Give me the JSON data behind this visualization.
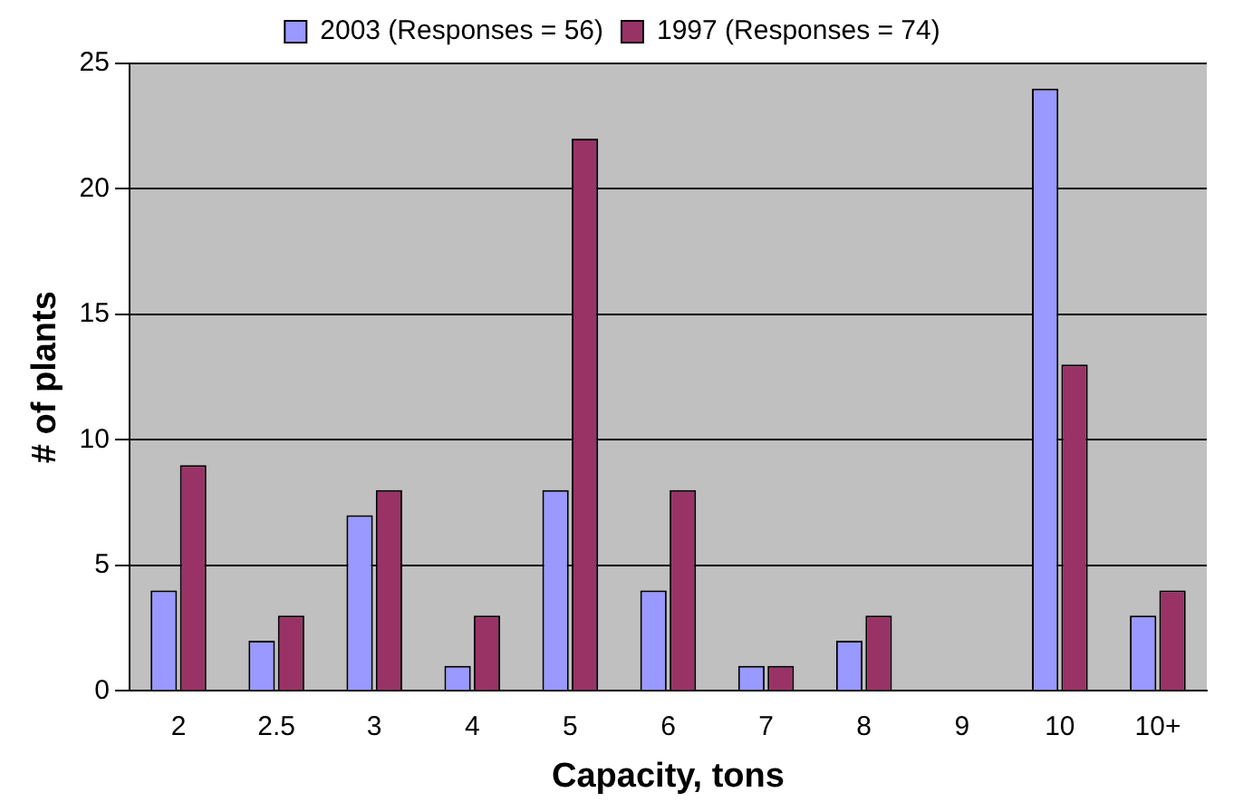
{
  "chart_data": {
    "type": "bar",
    "xlabel": "Capacity, tons",
    "ylabel": "# of plants",
    "categories": [
      "2",
      "2.5",
      "3",
      "4",
      "5",
      "6",
      "7",
      "8",
      "9",
      "10",
      "10+"
    ],
    "series": [
      {
        "name": "2003 (Responses = 56)",
        "color": "#9999ff",
        "values": [
          4,
          2,
          7,
          1,
          8,
          4,
          1,
          2,
          0,
          24,
          3
        ]
      },
      {
        "name": "1997 (Responses = 74)",
        "color": "#993366",
        "values": [
          9,
          3,
          8,
          3,
          22,
          8,
          1,
          3,
          0,
          13,
          4
        ]
      }
    ],
    "ylim": [
      0,
      25
    ],
    "yticks": [
      0,
      5,
      10,
      15,
      20,
      25
    ],
    "grid": "y",
    "legend": "top"
  }
}
